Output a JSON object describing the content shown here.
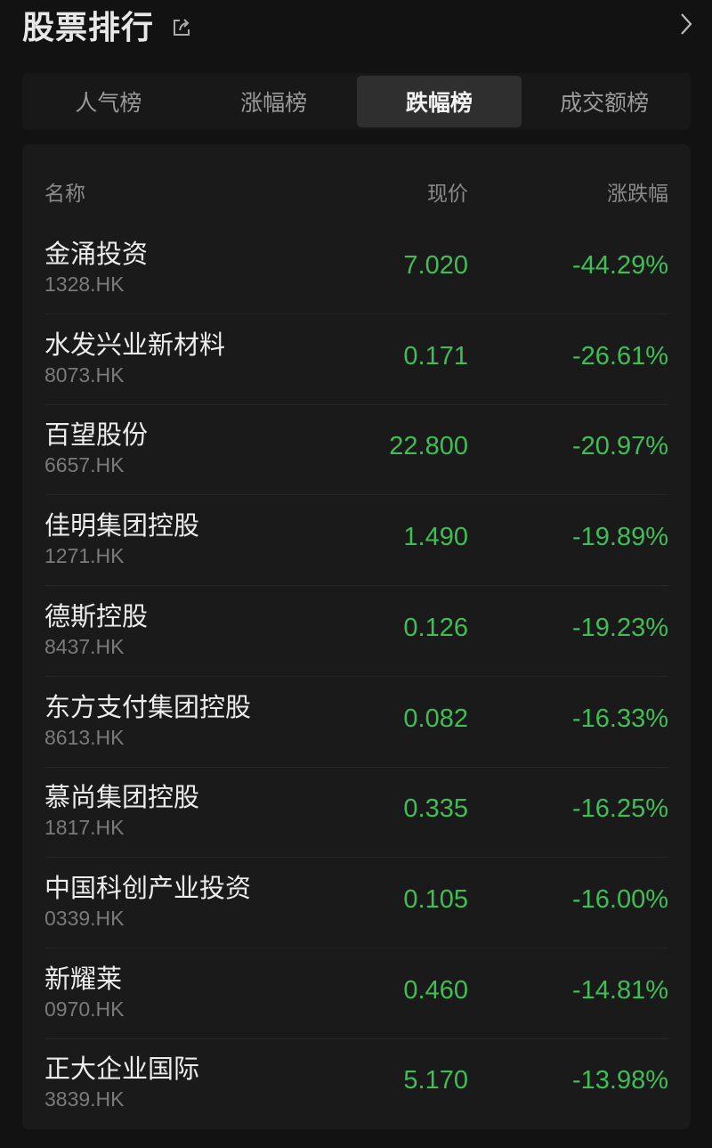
{
  "header": {
    "title": "股票排行"
  },
  "tabs": [
    {
      "label": "人气榜"
    },
    {
      "label": "涨幅榜"
    },
    {
      "label": "跌幅榜",
      "active": true
    },
    {
      "label": "成交额榜"
    }
  ],
  "table": {
    "columns": {
      "name": "名称",
      "price": "现价",
      "change": "涨跌幅"
    },
    "rows": [
      {
        "name": "金涌投资",
        "code": "1328.HK",
        "price": "7.020",
        "change": "-44.29%"
      },
      {
        "name": "水发兴业新材料",
        "code": "8073.HK",
        "price": "0.171",
        "change": "-26.61%"
      },
      {
        "name": "百望股份",
        "code": "6657.HK",
        "price": "22.800",
        "change": "-20.97%"
      },
      {
        "name": "佳明集团控股",
        "code": "1271.HK",
        "price": "1.490",
        "change": "-19.89%"
      },
      {
        "name": "德斯控股",
        "code": "8437.HK",
        "price": "0.126",
        "change": "-19.23%"
      },
      {
        "name": "东方支付集团控股",
        "code": "8613.HK",
        "price": "0.082",
        "change": "-16.33%"
      },
      {
        "name": "慕尚集团控股",
        "code": "1817.HK",
        "price": "0.335",
        "change": "-16.25%"
      },
      {
        "name": "中国科创产业投资",
        "code": "0339.HK",
        "price": "0.105",
        "change": "-16.00%"
      },
      {
        "name": "新耀莱",
        "code": "0970.HK",
        "price": "0.460",
        "change": "-14.81%"
      },
      {
        "name": "正大企业国际",
        "code": "3839.HK",
        "price": "5.170",
        "change": "-13.98%"
      }
    ]
  },
  "colors": {
    "down": "#3fbe55",
    "background": "#121212"
  }
}
